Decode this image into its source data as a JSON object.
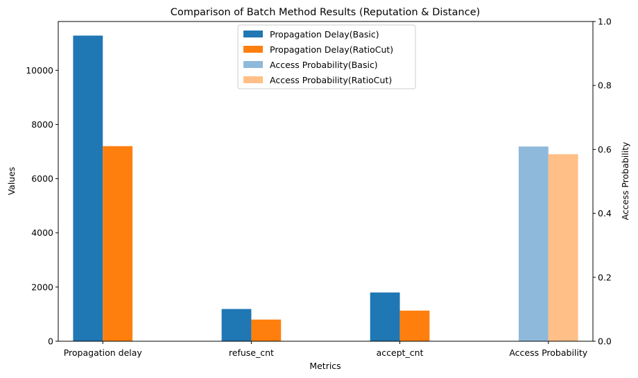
{
  "chart_data": {
    "type": "bar",
    "title": "Comparison of Batch Method Results (Reputation & Distance)",
    "xlabel": "Metrics",
    "ylabel": "Values",
    "y2label": "Access Probability",
    "categories": [
      "Propagation delay",
      "refuse_cnt",
      "accept_cnt",
      "Access Probability"
    ],
    "ylim": [
      0,
      11800
    ],
    "yticks": [
      0,
      2000,
      4000,
      6000,
      8000,
      10000
    ],
    "y2lim": [
      0,
      1.0
    ],
    "y2ticks": [
      "0.0",
      "0.2",
      "0.4",
      "0.6",
      "0.8",
      "1.0"
    ],
    "series": [
      {
        "name": "Propagation Delay(Basic)",
        "axis": "left",
        "color": "#1f77b4",
        "values": [
          11280,
          1190,
          1800,
          null
        ]
      },
      {
        "name": "Propagation Delay(RatioCut)",
        "axis": "left",
        "color": "#ff7f0e",
        "values": [
          7200,
          800,
          1130,
          null
        ]
      },
      {
        "name": "Access Probability(Basic)",
        "axis": "right",
        "color": "#8fb9da",
        "values": [
          null,
          null,
          null,
          0.609
        ]
      },
      {
        "name": "Access Probability(RatioCut)",
        "axis": "right",
        "color": "#ffbf86",
        "values": [
          null,
          null,
          null,
          0.585
        ]
      }
    ],
    "legend_position": "top-center"
  }
}
